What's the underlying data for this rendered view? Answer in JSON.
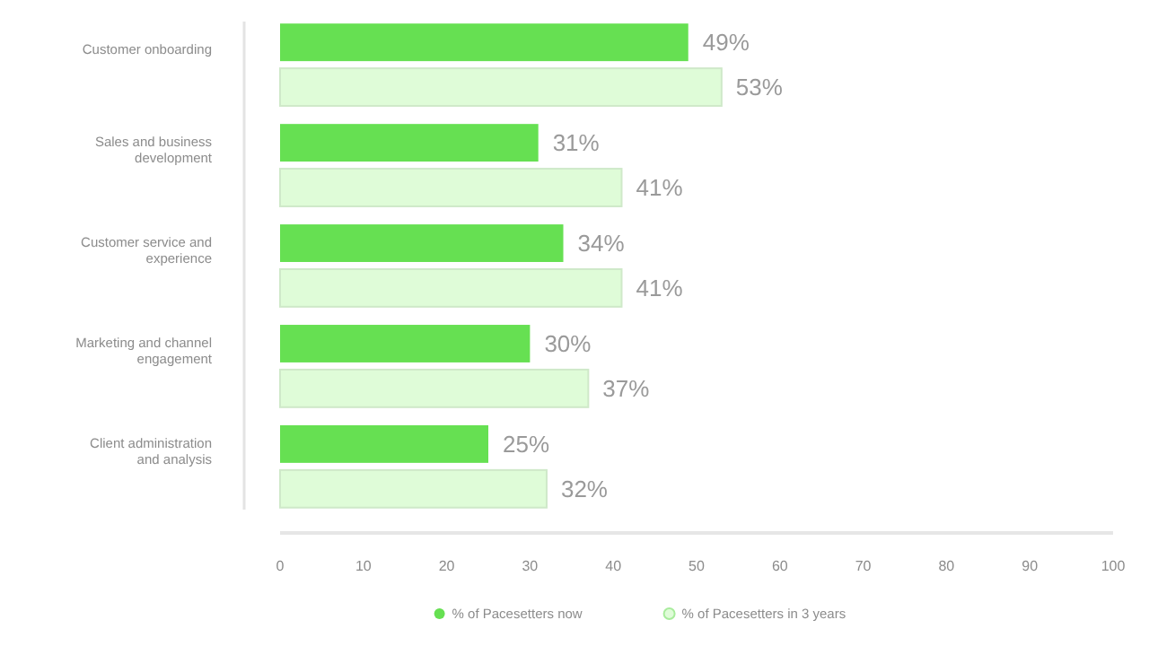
{
  "chart_data": {
    "type": "bar",
    "orientation": "horizontal",
    "categories": [
      "Customer onboarding",
      "Sales and business development",
      "Customer service and experience",
      "Marketing and channel engagement",
      "Client administration and analysis"
    ],
    "series": [
      {
        "name": "% of Pacesetters now",
        "color": "#66e052",
        "values": [
          49,
          31,
          34,
          30,
          25
        ]
      },
      {
        "name": "% of Pacesetters in 3 years",
        "color": "#dffcd8",
        "values": [
          53,
          41,
          41,
          37,
          32
        ]
      }
    ],
    "value_labels": [
      [
        "49%",
        "31%",
        "34%",
        "30%",
        "25%"
      ],
      [
        "53%",
        "41%",
        "41%",
        "37%",
        "32%"
      ]
    ],
    "xlim": [
      0,
      100
    ],
    "xticks": [
      0,
      10,
      20,
      30,
      40,
      50,
      60,
      70,
      80,
      90,
      100
    ],
    "legend": "bottom",
    "grid": false
  }
}
